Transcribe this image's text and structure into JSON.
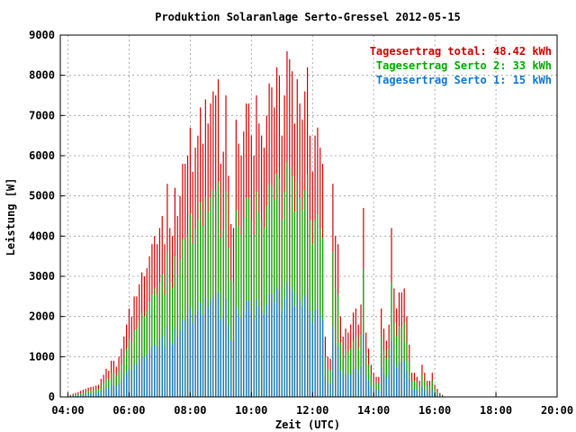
{
  "chart_data": {
    "type": "bar",
    "title": "Produktion Solaranlage Serto-Gressel 2012-05-15",
    "xlabel": "Zeit (UTC)",
    "ylabel": "Leistung [W]",
    "xlim": [
      3.75,
      20.0
    ],
    "ylim": [
      0,
      9000
    ],
    "x_ticks": [
      "04:00",
      "06:00",
      "08:00",
      "10:00",
      "12:00",
      "14:00",
      "16:00",
      "18:00",
      "20:00"
    ],
    "y_ticks": [
      "0",
      "1000",
      "2000",
      "3000",
      "4000",
      "5000",
      "6000",
      "7000",
      "8000",
      "9000"
    ],
    "grid": true,
    "legend_position": "top-right",
    "interval_minutes": 5,
    "start_time": "04:00",
    "series": [
      {
        "name": "Tagesertrag total: 48.42 kWh",
        "color": "#cc0000",
        "values": [
          0,
          50,
          80,
          100,
          120,
          150,
          180,
          200,
          230,
          250,
          260,
          280,
          300,
          450,
          550,
          700,
          650,
          900,
          900,
          750,
          1000,
          1200,
          1500,
          1800,
          2200,
          2000,
          2500,
          2500,
          2800,
          3100,
          3000,
          3200,
          3500,
          3800,
          4000,
          3800,
          4200,
          4500,
          3800,
          5300,
          4200,
          4000,
          5200,
          4500,
          5000,
          5800,
          5800,
          6000,
          6700,
          5600,
          6200,
          6500,
          7200,
          6300,
          7400,
          6800,
          7300,
          7600,
          7500,
          7900,
          5800,
          6100,
          7500,
          5500,
          4300,
          4200,
          6900,
          6300,
          6000,
          6600,
          7300,
          7300,
          6500,
          6000,
          7500,
          6800,
          6500,
          6200,
          7000,
          7800,
          7700,
          7200,
          8200,
          8000,
          6500,
          7500,
          8600,
          8400,
          8100,
          6800,
          7900,
          7300,
          6900,
          7600,
          8200,
          6500,
          5600,
          6500,
          6700,
          6200,
          5800,
          1500,
          1000,
          950,
          5300,
          4000,
          3800,
          2000,
          1500,
          1700,
          1600,
          1800,
          2100,
          2200,
          1800,
          2300,
          4700,
          1600,
          1200,
          800,
          600,
          500,
          500,
          2200,
          1700,
          1400,
          1800,
          4200,
          2700,
          2200,
          2600,
          2600,
          2700,
          2000,
          1300,
          600,
          600,
          500,
          400,
          800,
          600,
          400,
          400,
          600,
          300,
          200,
          100,
          50,
          0
        ],
        "show_in_legend": true
      },
      {
        "name": "Tagesertrag Serto 2: 33 kWh",
        "color": "#00aa00",
        "values": [
          0,
          30,
          50,
          60,
          70,
          90,
          100,
          120,
          140,
          160,
          170,
          180,
          200,
          300,
          350,
          450,
          420,
          600,
          600,
          500,
          650,
          800,
          1000,
          1200,
          1450,
          1350,
          1650,
          1700,
          1900,
          2100,
          2000,
          2150,
          2350,
          2550,
          2700,
          2550,
          2850,
          3050,
          2550,
          3600,
          2850,
          2700,
          3500,
          3050,
          3400,
          3900,
          3950,
          4050,
          4550,
          3800,
          4200,
          4400,
          4850,
          4250,
          5000,
          4600,
          4950,
          5150,
          5100,
          5350,
          3950,
          4150,
          5100,
          3700,
          2900,
          2850,
          4650,
          4250,
          4050,
          4450,
          4950,
          4950,
          4400,
          4050,
          5100,
          4600,
          4400,
          4200,
          4750,
          5300,
          5250,
          4900,
          5550,
          5450,
          4400,
          5100,
          5850,
          5700,
          5500,
          4600,
          5350,
          4950,
          4650,
          5150,
          5550,
          4400,
          3800,
          4400,
          4550,
          4200,
          3950,
          1000,
          700,
          650,
          3600,
          2700,
          2550,
          1350,
          1000,
          1150,
          1100,
          1200,
          1400,
          1500,
          1200,
          1550,
          3200,
          1100,
          800,
          550,
          400,
          350,
          350,
          1500,
          1150,
          950,
          1200,
          2850,
          1850,
          1500,
          1750,
          1750,
          1850,
          1350,
          900,
          400,
          400,
          350,
          270,
          550,
          400,
          270,
          270,
          400,
          200,
          140,
          70,
          30,
          0
        ],
        "show_in_legend": true
      },
      {
        "name": "Tagesertrag Serto 1: 15 kWh",
        "color": "#1177cc",
        "values": [
          0,
          20,
          30,
          30,
          40,
          50,
          60,
          70,
          80,
          90,
          90,
          100,
          110,
          150,
          180,
          230,
          220,
          300,
          300,
          250,
          330,
          400,
          500,
          600,
          700,
          650,
          800,
          820,
          920,
          1000,
          980,
          1050,
          1150,
          1250,
          1300,
          1250,
          1400,
          1500,
          1250,
          1750,
          1400,
          1300,
          1700,
          1500,
          1650,
          1900,
          1900,
          1950,
          2200,
          1850,
          2050,
          2150,
          2350,
          2050,
          2450,
          2250,
          2400,
          2500,
          2450,
          2600,
          1900,
          2000,
          2450,
          1800,
          1400,
          1400,
          2250,
          2050,
          1950,
          2150,
          2400,
          2400,
          2150,
          1950,
          2450,
          2250,
          2150,
          2050,
          2300,
          2550,
          2550,
          2350,
          2700,
          2650,
          2150,
          2450,
          2850,
          2750,
          2650,
          2250,
          2600,
          2400,
          2250,
          2500,
          2700,
          2150,
          1850,
          2150,
          2200,
          2050,
          1900,
          500,
          350,
          320,
          1750,
          1300,
          1250,
          650,
          500,
          560,
          530,
          580,
          680,
          720,
          580,
          750,
          1550,
          530,
          400,
          270,
          200,
          170,
          170,
          720,
          560,
          460,
          580,
          1380,
          900,
          720,
          850,
          850,
          900,
          650,
          430,
          200,
          200,
          170,
          130,
          270,
          200,
          130,
          130,
          200,
          100,
          70,
          35,
          15,
          0
        ],
        "show_in_legend": true
      }
    ]
  }
}
